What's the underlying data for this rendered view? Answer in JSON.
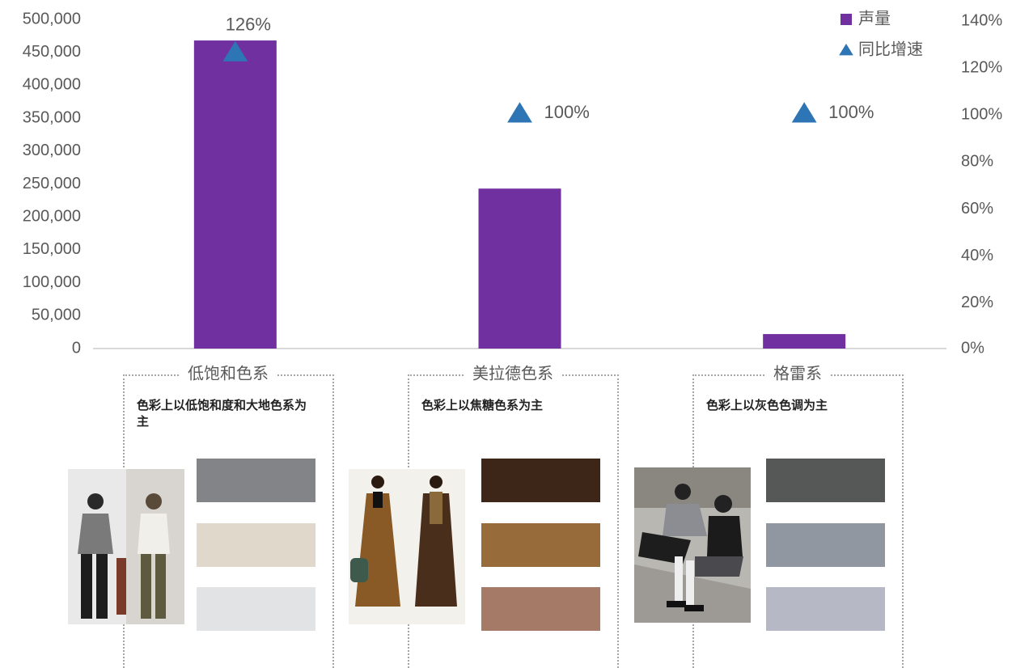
{
  "chart_data": {
    "type": "bar_line",
    "categories": [
      "低饱和色系",
      "美拉德色系",
      "格雷系"
    ],
    "series": [
      {
        "name": "声量",
        "type": "bar",
        "color": "#7030a0",
        "values": [
          468000,
          243000,
          22000
        ]
      },
      {
        "name": "同比增速",
        "type": "marker",
        "axis": "y2",
        "color": "#2e75b6",
        "values": [
          126,
          100,
          100
        ],
        "value_labels": [
          "126%",
          "100%",
          "100%"
        ]
      }
    ],
    "ylim": [
      0,
      500000
    ],
    "yticks": [
      0,
      {
        "value": 50000,
        "label": "50,000"
      },
      {
        "value": 100000,
        "label": "100,000"
      },
      {
        "value": 150000,
        "label": "150,000"
      },
      {
        "value": 200000,
        "label": "200,000"
      },
      {
        "value": 250000,
        "label": "250,000"
      },
      {
        "value": 300000,
        "label": "300,000"
      },
      {
        "value": 350000,
        "label": "350,000"
      },
      {
        "value": 400000,
        "label": "400,000"
      },
      {
        "value": 450000,
        "label": "450,000"
      },
      {
        "value": 500000,
        "label": "500,000"
      }
    ],
    "y2lim": [
      0,
      140
    ],
    "y2ticks": [
      {
        "value": 0,
        "label": "0%"
      },
      {
        "value": 20,
        "label": "20%"
      },
      {
        "value": 40,
        "label": "40%"
      },
      {
        "value": 60,
        "label": "60%"
      },
      {
        "value": 80,
        "label": "80%"
      },
      {
        "value": 100,
        "label": "100%"
      },
      {
        "value": 120,
        "label": "120%"
      },
      {
        "value": 140,
        "label": "140%"
      }
    ],
    "grid": false,
    "legend": "top-right"
  },
  "panels": [
    {
      "description": "色彩上以低饱和度和大地色系为主",
      "swatches": [
        "#838488",
        "#e0d8cb",
        "#e2e3e5"
      ]
    },
    {
      "description": "色彩上以焦糖色系为主",
      "swatches": [
        "#3d2518",
        "#986c3a",
        "#a57a66"
      ]
    },
    {
      "description": "色彩上以灰色色调为主",
      "swatches": [
        "#555857",
        "#9097a0",
        "#b7b8c6"
      ]
    }
  ]
}
